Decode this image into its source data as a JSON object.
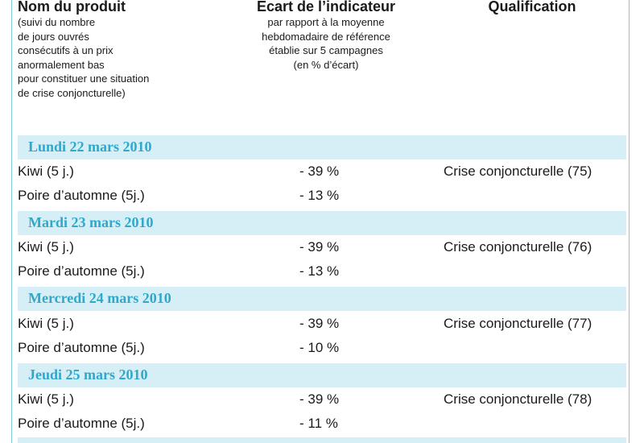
{
  "header": {
    "col1_title": "Nom du produit",
    "col1_sub": [
      "(suivi du nombre",
      "de jours ouvrés",
      "consécutifs à un prix",
      "anormalement bas",
      "pour constituer une situation",
      "de crise conjoncturelle)"
    ],
    "col2_title": "Ecart de l’indicateur",
    "col2_sub": [
      "par rapport à la moyenne",
      "hebdomadaire de référence",
      "établie sur 5 campagnes",
      "(en % d’écart)"
    ],
    "col3_title": "Qualification"
  },
  "days": [
    {
      "label": "Lundi 22 mars 2010",
      "rows": [
        {
          "name": "Kiwi (5 j.)",
          "pct": "- 39 %",
          "qual": "Crise conjoncturelle (75)"
        },
        {
          "name": "Poire d’automne (5j.)",
          "pct": "- 13 %",
          "qual": ""
        }
      ]
    },
    {
      "label": "Mardi 23 mars 2010",
      "rows": [
        {
          "name": "Kiwi (5 j.)",
          "pct": "- 39 %",
          "qual": "Crise conjoncturelle (76)"
        },
        {
          "name": "Poire d’automne (5j.)",
          "pct": "- 13 %",
          "qual": ""
        }
      ]
    },
    {
      "label": "Mercredi 24 mars 2010",
      "rows": [
        {
          "name": "Kiwi (5 j.)",
          "pct": "- 39 %",
          "qual": "Crise conjoncturelle (77)"
        },
        {
          "name": "Poire d’automne (5j.)",
          "pct": "- 10 %",
          "qual": ""
        }
      ]
    },
    {
      "label": "Jeudi 25 mars 2010",
      "rows": [
        {
          "name": "Kiwi (5 j.)",
          "pct": "- 39 %",
          "qual": "Crise conjoncturelle (78)"
        },
        {
          "name": "Poire d’automne (5j.)",
          "pct": "- 11 %",
          "qual": ""
        }
      ]
    }
  ],
  "colors": {
    "band": "#d6eef6",
    "day_text": "#2fa8cc",
    "border": "#7fc8dc"
  }
}
